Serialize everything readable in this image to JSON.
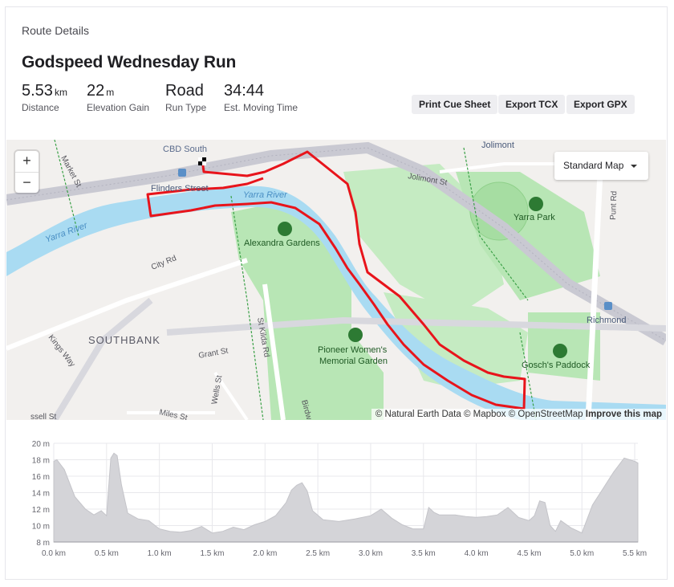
{
  "section_label": "Route Details",
  "route_title": "Godspeed Wednesday Run",
  "stats": [
    {
      "value": "5.53",
      "unit": "km",
      "label": "Distance"
    },
    {
      "value": "22",
      "unit": "m",
      "label": "Elevation Gain"
    },
    {
      "value": "Road",
      "unit": "",
      "label": "Run Type"
    },
    {
      "value": "34:44",
      "unit": "",
      "label": "Est. Moving Time"
    }
  ],
  "buttons": {
    "cue_sheet": "Print Cue Sheet",
    "tcx": "Export TCX",
    "gpx": "Export GPX"
  },
  "map": {
    "zoom_in": "+",
    "zoom_out": "−",
    "style_selected": "Standard Map",
    "attribution": "© Natural Earth Data © Mapbox © OpenStreetMap",
    "improve_link": "Improve this map",
    "labels": {
      "cbd": "CBD South",
      "flinders": "Flinders Street",
      "yarra1": "Yarra River",
      "yarra2": "Yarra River",
      "alexandra": "Alexandra Gardens",
      "yarra_park": "Yarra Park",
      "pioneer1": "Pioneer Women's",
      "pioneer2": "Memorial Garden",
      "goschs": "Gosch's Paddock",
      "southbank": "SOUTHBANK",
      "richmond": "Richmond",
      "jolimont": "Jolimont",
      "jolimont_st": "Jolimont St",
      "punt_rd": "Punt Rd",
      "city_rd": "City Rd",
      "kings_way": "Kings Way",
      "grant_st": "Grant St",
      "wells_st": "Wells St",
      "miles_st": "Miles St",
      "st_kilda_rd": "St Kilda Rd",
      "market_st": "Market St",
      "birdwood": "Birdw",
      "ssell_st": "ssell St"
    },
    "colors": {
      "route": "#e8141b",
      "water": "#a9dbf2",
      "park": "#b8e6b5"
    }
  },
  "chart_data": {
    "type": "area",
    "x_label_unit": "km",
    "y_label_unit": "m",
    "xlim": [
      0,
      5.53
    ],
    "ylim": [
      8,
      20
    ],
    "x_ticks": [
      "0.0 km",
      "0.5 km",
      "1.0 km",
      "1.5 km",
      "2.0 km",
      "2.5 km",
      "3.0 km",
      "3.5 km",
      "4.0 km",
      "4.5 km",
      "5.0 km",
      "5.5 km"
    ],
    "y_ticks": [
      "20 m",
      "18 m",
      "16 m",
      "14 m",
      "12 m",
      "10 m",
      "8 m"
    ],
    "x": [
      0,
      0.03,
      0.1,
      0.2,
      0.3,
      0.38,
      0.45,
      0.5,
      0.54,
      0.57,
      0.6,
      0.64,
      0.7,
      0.8,
      0.9,
      1.0,
      1.1,
      1.2,
      1.3,
      1.4,
      1.5,
      1.6,
      1.7,
      1.8,
      1.9,
      2.0,
      2.1,
      2.2,
      2.25,
      2.3,
      2.35,
      2.4,
      2.45,
      2.55,
      2.7,
      2.85,
      3.0,
      3.1,
      3.2,
      3.3,
      3.4,
      3.5,
      3.55,
      3.6,
      3.65,
      3.8,
      3.9,
      4.0,
      4.1,
      4.2,
      4.3,
      4.4,
      4.5,
      4.55,
      4.6,
      4.65,
      4.7,
      4.75,
      4.8,
      4.9,
      5.0,
      5.05,
      5.1,
      5.2,
      5.3,
      5.4,
      5.5,
      5.53
    ],
    "values": [
      17.8,
      18.0,
      16.8,
      13.5,
      12.0,
      11.3,
      11.8,
      11.2,
      18.2,
      18.8,
      18.5,
      15.0,
      11.5,
      10.8,
      10.6,
      9.6,
      9.3,
      9.2,
      9.4,
      9.9,
      9.1,
      9.3,
      9.8,
      9.5,
      10.1,
      10.5,
      11.2,
      12.8,
      14.3,
      14.9,
      15.2,
      14.2,
      11.8,
      10.7,
      10.5,
      10.8,
      11.2,
      12.0,
      10.9,
      10.1,
      9.6,
      9.6,
      12.2,
      11.6,
      11.3,
      11.3,
      11.1,
      11.0,
      11.1,
      11.3,
      12.2,
      11.0,
      10.6,
      11.2,
      13.0,
      12.8,
      10.0,
      9.3,
      10.6,
      9.7,
      9.1,
      10.8,
      12.5,
      14.5,
      16.5,
      18.2,
      17.8,
      17.6
    ]
  }
}
